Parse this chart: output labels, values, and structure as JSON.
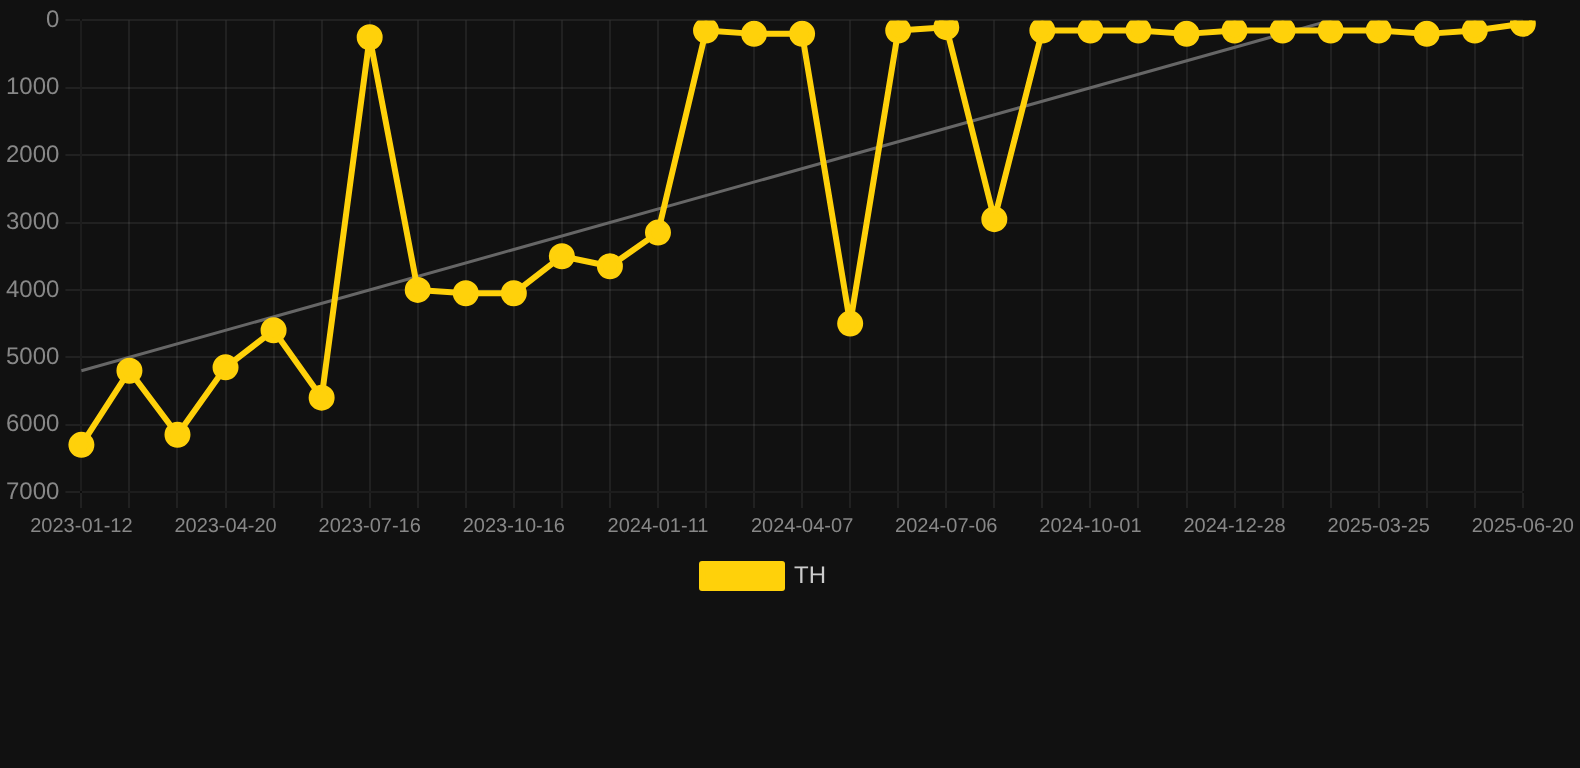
{
  "chart_data": {
    "type": "line",
    "categories": [
      "2023-01-12",
      null,
      null,
      "2023-04-20",
      null,
      null,
      "2023-07-16",
      null,
      null,
      "2023-10-16",
      null,
      null,
      "2024-01-11",
      null,
      null,
      "2024-04-07",
      null,
      null,
      "2024-07-06",
      null,
      null,
      "2024-10-01",
      null,
      null,
      "2024-12-28",
      null,
      null,
      "2025-03-25",
      null,
      null,
      "2025-06-20"
    ],
    "series": [
      {
        "name": "TH",
        "color": "#ffd10a",
        "marker": "circle",
        "values": [
          6300,
          5200,
          6150,
          5150,
          4600,
          5600,
          250,
          4000,
          4050,
          4050,
          3500,
          3650,
          3150,
          150,
          200,
          200,
          4500,
          150,
          100,
          2950,
          150,
          150,
          150,
          200,
          150,
          150,
          150,
          150,
          200,
          150,
          50
        ]
      },
      {
        "type": "line",
        "color": "#666666",
        "marker": "none",
        "values": [
          5200,
          null,
          null,
          null,
          null,
          null,
          null,
          null,
          null,
          null,
          null,
          null,
          null,
          null,
          null,
          null,
          null,
          null,
          null,
          null,
          null,
          null,
          null,
          null,
          null,
          null,
          0,
          null,
          null,
          null,
          null
        ]
      }
    ],
    "ylim": [
      7000,
      0
    ],
    "yticks": [
      0,
      1000,
      2000,
      3000,
      4000,
      5000,
      6000,
      7000
    ],
    "grid": true,
    "legend": "bottom"
  }
}
